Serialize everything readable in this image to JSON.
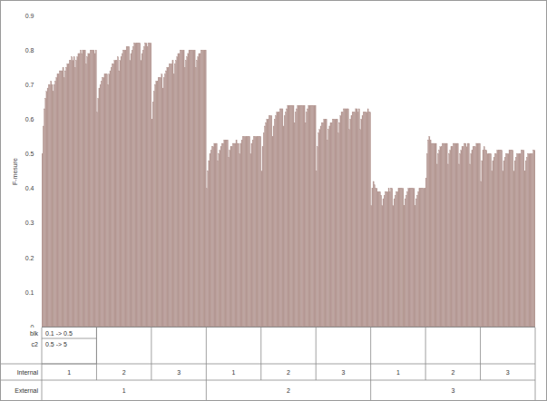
{
  "chart_data": {
    "type": "bar",
    "y_label": "F-mesure",
    "color": "#b59994",
    "grid": false,
    "ylim": [
      0,
      0.9
    ],
    "yticks": [
      0,
      0.1,
      0.2,
      0.3,
      0.4,
      0.5,
      0.6,
      0.7,
      0.8,
      0.9
    ],
    "categories": [
      null,
      null,
      null,
      null,
      null,
      null,
      null,
      null,
      null,
      null,
      null,
      null,
      null,
      null,
      null,
      null,
      null,
      null,
      null,
      null,
      null,
      null,
      null,
      null,
      null,
      null,
      null,
      null,
      null,
      null,
      null,
      null,
      null,
      null,
      null,
      null,
      null,
      null,
      null,
      null,
      null,
      null,
      null,
      null,
      null,
      null,
      null,
      null,
      null,
      null,
      null,
      null,
      null,
      null,
      null,
      null,
      null,
      null,
      null,
      null,
      null,
      null,
      null,
      null,
      null,
      null,
      null,
      null,
      null,
      null,
      null,
      null,
      null,
      null,
      null,
      null,
      null,
      null,
      null,
      null,
      null,
      null,
      null,
      null,
      null,
      null,
      null,
      null,
      null,
      null,
      null,
      null,
      null,
      null,
      null,
      null,
      null,
      null,
      null,
      null,
      null,
      null,
      null,
      null,
      null,
      null,
      null,
      null,
      null,
      null,
      null,
      null,
      null,
      null,
      null,
      null,
      null,
      null,
      null,
      null,
      null,
      null,
      null,
      null,
      null,
      null,
      null,
      null,
      null,
      null,
      null,
      null,
      null,
      null,
      null,
      null,
      null,
      null,
      null,
      null,
      null,
      null,
      null,
      null,
      null,
      null,
      null,
      null,
      null,
      null,
      null,
      null,
      null,
      null,
      null,
      null,
      null,
      null,
      null,
      null,
      null,
      null,
      null,
      null,
      null,
      null,
      null,
      null,
      null,
      null,
      null,
      null,
      null,
      null,
      null,
      null,
      null,
      null,
      null,
      null,
      null,
      null,
      null,
      null,
      null,
      null,
      null,
      null,
      null,
      null,
      null,
      null,
      null,
      null,
      null,
      null,
      null,
      null,
      null,
      null,
      null,
      null,
      null,
      null,
      null,
      null,
      null,
      null,
      null,
      null,
      null,
      null,
      null,
      null,
      null,
      null,
      null,
      null,
      null,
      null,
      null,
      null,
      null,
      null,
      null,
      null,
      null,
      null,
      null,
      null,
      null,
      null,
      null,
      null,
      null,
      null,
      null,
      null,
      null,
      null,
      null,
      null,
      null,
      null,
      null,
      null,
      null,
      null,
      null,
      null,
      null,
      null,
      null,
      null,
      null,
      null,
      null,
      null,
      null,
      null,
      null,
      null,
      null,
      null,
      null,
      null,
      null,
      null,
      null,
      null,
      null,
      null,
      null,
      null,
      null,
      null,
      null,
      null,
      null,
      null,
      null,
      null,
      null,
      null,
      null,
      null,
      null,
      null,
      null,
      null,
      null,
      null,
      null,
      null,
      null,
      null,
      null,
      null,
      null,
      null,
      null,
      null,
      null,
      null,
      null,
      null,
      null,
      null,
      null,
      null,
      null,
      null,
      null,
      null,
      null,
      null,
      null,
      null,
      null,
      null,
      null,
      null,
      null,
      null,
      null,
      null,
      null,
      null,
      null,
      null,
      null,
      null,
      null,
      null,
      null,
      null,
      null,
      null,
      null,
      null,
      null,
      null,
      null,
      null,
      null,
      null,
      null,
      null,
      null,
      null,
      null,
      null,
      null,
      null,
      null,
      null,
      null,
      null,
      null,
      null,
      null,
      null,
      null,
      null,
      null,
      null,
      null,
      null,
      null,
      null,
      null,
      null,
      null,
      null,
      null,
      null,
      null,
      null,
      null,
      null,
      null,
      null,
      null,
      null,
      null,
      null,
      null,
      null,
      null,
      null,
      null,
      null,
      null,
      null,
      null,
      null,
      null,
      null,
      null,
      null,
      null,
      null,
      null,
      null,
      null,
      null,
      null,
      null,
      null,
      null,
      null,
      null,
      null,
      null,
      null,
      null,
      null,
      null,
      null,
      null,
      null,
      null,
      null,
      null,
      null,
      null,
      null,
      null,
      null,
      null,
      null,
      null,
      null,
      null,
      null,
      null,
      null,
      null,
      null,
      null,
      null,
      null,
      null,
      null,
      null,
      null,
      null,
      null,
      null,
      null
    ],
    "values": [
      0.5,
      0.58,
      0.63,
      0.66,
      0.68,
      0.69,
      0.7,
      0.7,
      0.71,
      0.7,
      0.68,
      0.7,
      0.71,
      0.72,
      0.73,
      0.73,
      0.74,
      0.74,
      0.74,
      0.75,
      0.72,
      0.74,
      0.75,
      0.76,
      0.76,
      0.77,
      0.77,
      0.78,
      0.77,
      0.78,
      0.75,
      0.77,
      0.78,
      0.79,
      0.79,
      0.8,
      0.79,
      0.8,
      0.8,
      0.8,
      0.76,
      0.78,
      0.79,
      0.79,
      0.8,
      0.8,
      0.8,
      0.8,
      0.79,
      0.8,
      0.62,
      0.66,
      0.69,
      0.7,
      0.71,
      0.72,
      0.72,
      0.73,
      0.73,
      0.73,
      0.7,
      0.73,
      0.74,
      0.75,
      0.76,
      0.76,
      0.77,
      0.77,
      0.77,
      0.78,
      0.74,
      0.77,
      0.78,
      0.79,
      0.8,
      0.8,
      0.8,
      0.81,
      0.81,
      0.81,
      0.77,
      0.79,
      0.8,
      0.81,
      0.82,
      0.82,
      0.82,
      0.82,
      0.82,
      0.82,
      0.77,
      0.79,
      0.8,
      0.81,
      0.82,
      0.82,
      0.81,
      0.82,
      0.82,
      0.82,
      0.6,
      0.65,
      0.68,
      0.7,
      0.71,
      0.71,
      0.72,
      0.72,
      0.72,
      0.73,
      0.69,
      0.72,
      0.73,
      0.74,
      0.75,
      0.75,
      0.76,
      0.76,
      0.76,
      0.77,
      0.73,
      0.76,
      0.77,
      0.78,
      0.79,
      0.79,
      0.8,
      0.8,
      0.8,
      0.8,
      0.75,
      0.77,
      0.78,
      0.79,
      0.8,
      0.8,
      0.8,
      0.8,
      0.8,
      0.8,
      0.75,
      0.77,
      0.78,
      0.79,
      0.79,
      0.8,
      0.8,
      0.8,
      0.8,
      0.8,
      0.4,
      0.45,
      0.48,
      0.5,
      0.51,
      0.52,
      0.52,
      0.53,
      0.53,
      0.53,
      0.48,
      0.5,
      0.51,
      0.52,
      0.53,
      0.53,
      0.54,
      0.54,
      0.54,
      0.54,
      0.49,
      0.51,
      0.52,
      0.52,
      0.53,
      0.53,
      0.53,
      0.54,
      0.53,
      0.53,
      0.5,
      0.53,
      0.54,
      0.55,
      0.55,
      0.55,
      0.55,
      0.55,
      0.55,
      0.55,
      0.5,
      0.53,
      0.54,
      0.55,
      0.55,
      0.55,
      0.55,
      0.55,
      0.55,
      0.55,
      0.45,
      0.52,
      0.56,
      0.58,
      0.59,
      0.6,
      0.6,
      0.61,
      0.61,
      0.61,
      0.55,
      0.58,
      0.6,
      0.61,
      0.62,
      0.62,
      0.62,
      0.63,
      0.63,
      0.63,
      0.58,
      0.61,
      0.62,
      0.63,
      0.64,
      0.64,
      0.64,
      0.64,
      0.64,
      0.64,
      0.59,
      0.62,
      0.63,
      0.64,
      0.64,
      0.64,
      0.64,
      0.64,
      0.64,
      0.64,
      0.59,
      0.62,
      0.63,
      0.64,
      0.64,
      0.64,
      0.64,
      0.64,
      0.64,
      0.64,
      0.45,
      0.52,
      0.56,
      0.57,
      0.58,
      0.59,
      0.59,
      0.6,
      0.6,
      0.6,
      0.54,
      0.57,
      0.58,
      0.59,
      0.59,
      0.6,
      0.6,
      0.6,
      0.6,
      0.6,
      0.56,
      0.59,
      0.61,
      0.62,
      0.62,
      0.63,
      0.63,
      0.63,
      0.63,
      0.63,
      0.57,
      0.6,
      0.61,
      0.62,
      0.62,
      0.62,
      0.63,
      0.63,
      0.62,
      0.63,
      0.57,
      0.6,
      0.61,
      0.62,
      0.62,
      0.62,
      0.62,
      0.63,
      0.62,
      0.62,
      0.35,
      0.4,
      0.42,
      0.41,
      0.4,
      0.4,
      0.39,
      0.39,
      0.39,
      0.38,
      0.35,
      0.37,
      0.38,
      0.39,
      0.39,
      0.39,
      0.4,
      0.39,
      0.4,
      0.4,
      0.35,
      0.37,
      0.38,
      0.39,
      0.39,
      0.4,
      0.4,
      0.4,
      0.4,
      0.4,
      0.35,
      0.37,
      0.38,
      0.39,
      0.4,
      0.4,
      0.4,
      0.4,
      0.4,
      0.4,
      0.35,
      0.37,
      0.38,
      0.39,
      0.4,
      0.4,
      0.4,
      0.4,
      0.4,
      0.4,
      0.43,
      0.5,
      0.54,
      0.55,
      0.54,
      0.53,
      0.53,
      0.53,
      0.53,
      0.53,
      0.47,
      0.5,
      0.51,
      0.52,
      0.52,
      0.53,
      0.53,
      0.53,
      0.53,
      0.53,
      0.47,
      0.5,
      0.51,
      0.52,
      0.52,
      0.53,
      0.53,
      0.53,
      0.53,
      0.53,
      0.47,
      0.5,
      0.51,
      0.52,
      0.52,
      0.53,
      0.53,
      0.52,
      0.53,
      0.53,
      0.47,
      0.5,
      0.51,
      0.52,
      0.52,
      0.52,
      0.53,
      0.53,
      0.53,
      0.53,
      0.42,
      0.48,
      0.51,
      0.52,
      0.51,
      0.51,
      0.5,
      0.5,
      0.5,
      0.5,
      0.45,
      0.48,
      0.49,
      0.5,
      0.5,
      0.51,
      0.51,
      0.51,
      0.51,
      0.51,
      0.45,
      0.48,
      0.49,
      0.5,
      0.5,
      0.5,
      0.51,
      0.51,
      0.51,
      0.51,
      0.45,
      0.48,
      0.49,
      0.5,
      0.5,
      0.5,
      0.5,
      0.51,
      0.51,
      0.51,
      0.45,
      0.48,
      0.49,
      0.5,
      0.5,
      0.5,
      0.5,
      0.5,
      0.51,
      0.51
    ],
    "x_table": [
      {
        "label": "blk",
        "cells": [
          "0.1 -> 0.5"
        ]
      },
      {
        "label": "c2",
        "cells": [
          "0.5 -> 5"
        ]
      },
      {
        "label": "Internal",
        "cells": [
          1,
          2,
          3,
          1,
          2,
          3,
          1,
          2,
          3
        ]
      },
      {
        "label": "External",
        "cells": [
          1,
          2,
          3
        ]
      }
    ]
  }
}
